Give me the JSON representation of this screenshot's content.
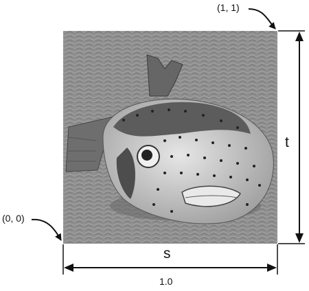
{
  "diagram": {
    "corner_top_right_label": "(1, 1)",
    "corner_bottom_left_label": "(0, 0)",
    "horizontal_axis_label": "s",
    "vertical_axis_label": "t",
    "width_label": "1.0"
  },
  "image": {
    "subject": "pufferfish-on-water",
    "ink_color": "#111111",
    "water_color": "#8e8e8e",
    "fish_body_color": "#d7d7d7",
    "fish_dark_color": "#5a5a5a"
  }
}
